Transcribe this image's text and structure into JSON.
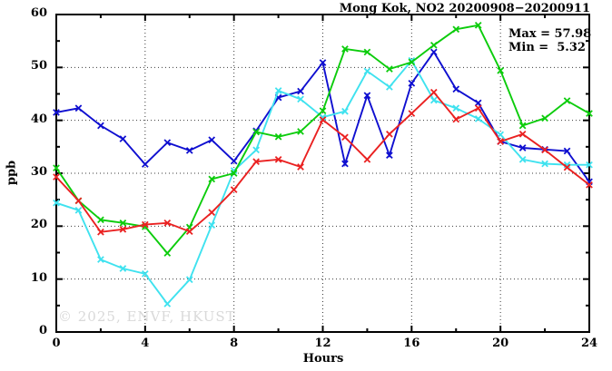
{
  "title": "Mong Kok, NO2 20200908−20200911",
  "annotations": {
    "max_label": "Max = 57.98",
    "min_label": "Min =  5.32"
  },
  "watermark": "© 2025, ENVF, HKUST",
  "chart_data": {
    "type": "line",
    "title": "Mong Kok, NO2 20200908−20200911",
    "xlabel": "Hours",
    "ylabel": "ppb",
    "xlim": [
      0,
      24
    ],
    "ylim": [
      0,
      60
    ],
    "x_ticks_major": [
      0,
      4,
      8,
      12,
      16,
      20,
      24
    ],
    "x_tick_minor_step": 2,
    "y_ticks_major": [
      0,
      10,
      20,
      30,
      40,
      50,
      60
    ],
    "y_tick_minor_step": 5,
    "grid": {
      "x": [
        4,
        8,
        12,
        16,
        20
      ],
      "y": [
        10,
        20,
        30,
        40,
        50
      ],
      "style": "dotted"
    },
    "legend_position": "none",
    "marker": "x",
    "max_value": 57.98,
    "min_value": 5.32,
    "x": [
      0,
      1,
      2,
      3,
      4,
      5,
      6,
      7,
      8,
      9,
      10,
      11,
      12,
      13,
      14,
      15,
      16,
      17,
      18,
      19,
      20,
      21,
      22,
      23,
      24
    ],
    "series": [
      {
        "name": "day-20200908-blue",
        "color": "#0f0fd0",
        "values": [
          41.5,
          42.3,
          39.0,
          36.5,
          31.7,
          35.8,
          34.3,
          36.3,
          32.3,
          38.0,
          44.3,
          45.5,
          50.9,
          31.8,
          44.7,
          33.4,
          47.0,
          52.9,
          45.9,
          43.3,
          36.0,
          34.8,
          34.5,
          34.2,
          28.4
        ]
      },
      {
        "name": "day-20200909-cyan",
        "color": "#3fe2ef",
        "values": [
          24.4,
          23.0,
          13.7,
          12.0,
          11.0,
          5.32,
          9.9,
          20.2,
          30.5,
          34.4,
          45.6,
          44.0,
          40.6,
          41.7,
          49.3,
          46.3,
          51.3,
          43.8,
          42.3,
          40.3,
          37.3,
          32.6,
          31.8,
          31.6,
          31.6
        ]
      },
      {
        "name": "day-20200910-green",
        "color": "#0ccc0c",
        "values": [
          31.0,
          24.8,
          21.2,
          20.6,
          19.9,
          14.9,
          19.8,
          28.9,
          30.0,
          37.8,
          36.9,
          37.9,
          41.8,
          53.5,
          52.9,
          49.7,
          51.0,
          54.2,
          57.2,
          57.98,
          49.4,
          39.0,
          40.4,
          43.7,
          41.3
        ]
      },
      {
        "name": "day-20200911-red",
        "color": "#ea2121",
        "values": [
          29.3,
          24.8,
          18.9,
          19.4,
          20.3,
          20.6,
          19.0,
          22.6,
          26.9,
          32.2,
          32.6,
          31.2,
          40.1,
          36.8,
          32.6,
          37.4,
          41.3,
          45.3,
          40.2,
          42.3,
          36.0,
          37.4,
          34.4,
          31.1,
          27.8
        ]
      }
    ]
  }
}
